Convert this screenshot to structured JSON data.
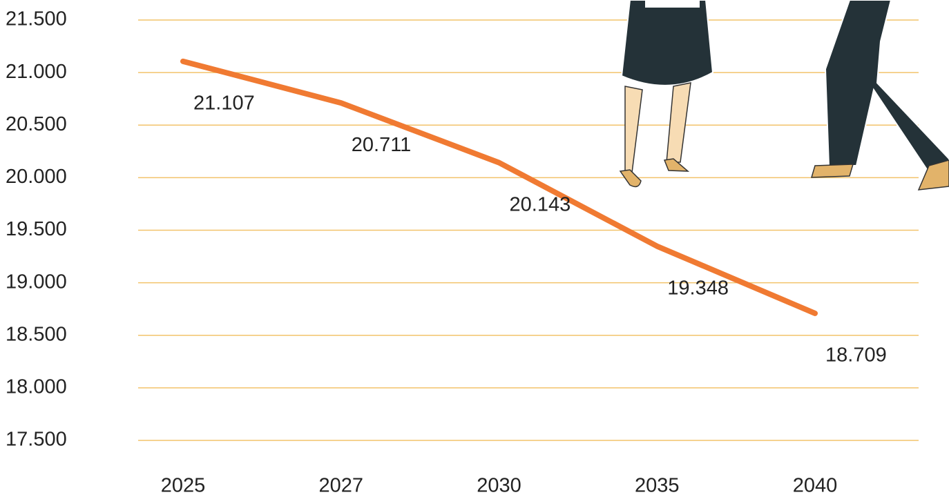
{
  "chart_data": {
    "type": "line",
    "categories": [
      "2025",
      "2027",
      "2030",
      "2035",
      "2040"
    ],
    "series": [
      {
        "name": null,
        "color": "#f07a32",
        "values": [
          21107,
          20711,
          20143,
          19348,
          18709
        ],
        "value_labels": [
          "21.107",
          "20.711",
          "20.143",
          "19.348",
          "18.709"
        ]
      }
    ],
    "ylim": [
      17500,
      21500
    ],
    "yticks": [
      {
        "value": 17500,
        "label": "17.500"
      },
      {
        "value": 18000,
        "label": "18.000"
      },
      {
        "value": 18500,
        "label": "18.500"
      },
      {
        "value": 19000,
        "label": "19.000"
      },
      {
        "value": 19500,
        "label": "19.500"
      },
      {
        "value": 20000,
        "label": "20.000"
      },
      {
        "value": 20500,
        "label": "20.500"
      },
      {
        "value": 21000,
        "label": "21.000"
      },
      {
        "value": 21500,
        "label": "21.500"
      }
    ],
    "grid": true
  }
}
